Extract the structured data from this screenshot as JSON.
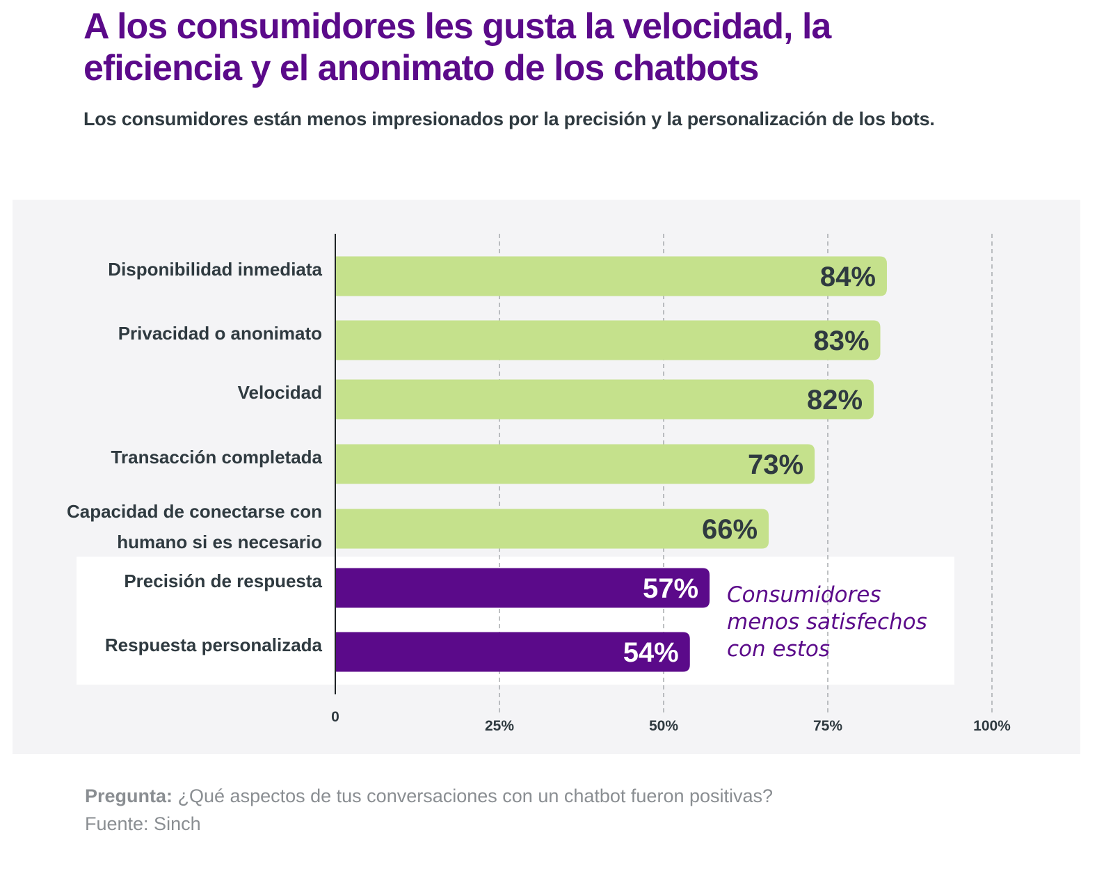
{
  "header": {
    "title_line1": "A los consumidores les gusta la velocidad, la",
    "title_line2": "eficiencia y el anonimato de los chatbots",
    "subtitle": "Los consumidores están menos impresionados por la precisión y la personalización de los bots."
  },
  "annotation": {
    "lines": [
      "Consumidores",
      "menos satisfechos",
      "con estos"
    ]
  },
  "footer": {
    "question_label": "Pregunta:",
    "question_text": "¿Qué aspectos de tus conversaciones con un chatbot fueron positivas?",
    "source": "Fuente: Sinch"
  },
  "colors": {
    "title": "#5b0a8a",
    "bar_positive": "#c5e18c",
    "bar_low": "#5b0a8a",
    "label_dark": "#2f3a40",
    "label_on_purple": "#ffffff"
  },
  "chart_data": {
    "type": "bar",
    "orientation": "horizontal",
    "title": "A los consumidores les gusta la velocidad, la eficiencia y el anonimato de los chatbots",
    "subtitle": "Los consumidores están menos impresionados por la precisión y la personalización de los bots.",
    "xlabel": "",
    "ylabel": "",
    "xlim": [
      0,
      100
    ],
    "grid": true,
    "categories": [
      [
        "Disponibilidad inmediata"
      ],
      [
        "Privacidad o anonimato"
      ],
      [
        "Velocidad"
      ],
      [
        "Transacción completada"
      ],
      [
        "Capacidad de conectarse con",
        "humano si es necesario"
      ],
      [
        "Precisión de respuesta"
      ],
      [
        "Respuesta personalizada"
      ]
    ],
    "values": [
      84,
      83,
      82,
      73,
      66,
      57,
      54
    ],
    "value_labels": [
      "84%",
      "83%",
      "82%",
      "73%",
      "66%",
      "57%",
      "54%"
    ],
    "highlighted": [
      false,
      false,
      false,
      false,
      false,
      true,
      true
    ],
    "x_ticks": [
      0,
      25,
      50,
      75,
      100
    ],
    "x_tick_labels": [
      "0",
      "25%",
      "50%",
      "75%",
      "100%"
    ],
    "annotation": "Consumidores menos satisfechos con estos"
  }
}
